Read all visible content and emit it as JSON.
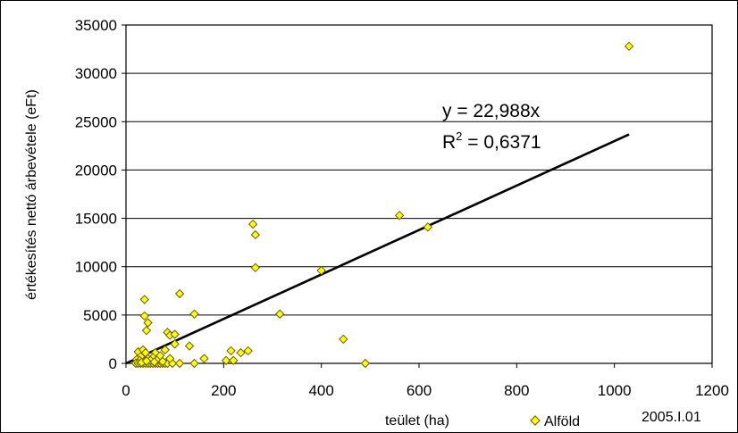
{
  "chart_data": {
    "type": "scatter",
    "xlabel": "teület (ha)",
    "ylabel": "értékesítés nettó árbevétele (eFt)",
    "xlim": [
      0,
      1200
    ],
    "ylim": [
      0,
      35000
    ],
    "x_ticks": [
      "0",
      "200",
      "400",
      "600",
      "800",
      "1000",
      "1200"
    ],
    "y_ticks": [
      "0",
      "5000",
      "10000",
      "15000",
      "20000",
      "25000",
      "30000",
      "35000"
    ],
    "grid": "horizontal",
    "legend_position": "bottom",
    "series": [
      {
        "name": "Alföld",
        "marker": "diamond",
        "color": "#ffff00",
        "points": [
          [
            1030,
            32800
          ],
          [
            560,
            15300
          ],
          [
            618,
            14100
          ],
          [
            260,
            14400
          ],
          [
            265,
            13300
          ],
          [
            265,
            9900
          ],
          [
            400,
            9600
          ],
          [
            315,
            5100
          ],
          [
            445,
            2500
          ],
          [
            490,
            0
          ],
          [
            110,
            7200
          ],
          [
            140,
            5100
          ],
          [
            38,
            6600
          ],
          [
            38,
            4900
          ],
          [
            45,
            4200
          ],
          [
            42,
            3400
          ],
          [
            85,
            3200
          ],
          [
            90,
            2900
          ],
          [
            100,
            3000
          ],
          [
            130,
            1800
          ],
          [
            100,
            2000
          ],
          [
            80,
            1400
          ],
          [
            60,
            1100
          ],
          [
            55,
            600
          ],
          [
            160,
            500
          ],
          [
            205,
            300
          ],
          [
            215,
            1300
          ],
          [
            220,
            300
          ],
          [
            235,
            1100
          ],
          [
            250,
            1300
          ],
          [
            25,
            1200
          ],
          [
            35,
            1400
          ],
          [
            40,
            1100
          ],
          [
            30,
            700
          ],
          [
            22,
            400
          ],
          [
            28,
            300
          ],
          [
            20,
            0
          ],
          [
            25,
            0
          ],
          [
            30,
            0
          ],
          [
            35,
            0
          ],
          [
            40,
            0
          ],
          [
            45,
            0
          ],
          [
            50,
            0
          ],
          [
            55,
            0
          ],
          [
            60,
            0
          ],
          [
            65,
            0
          ],
          [
            70,
            0
          ],
          [
            75,
            0
          ],
          [
            80,
            0
          ],
          [
            85,
            0
          ],
          [
            95,
            0
          ],
          [
            110,
            0
          ],
          [
            140,
            0
          ],
          [
            45,
            500
          ],
          [
            50,
            300
          ],
          [
            65,
            400
          ],
          [
            70,
            800
          ],
          [
            75,
            200
          ],
          [
            90,
            500
          ],
          [
            32,
            100
          ],
          [
            42,
            250
          ],
          [
            58,
            150
          ]
        ]
      }
    ],
    "trendline": {
      "type": "linear",
      "slope": 22.988,
      "x_range": [
        0,
        1030
      ],
      "equation_label": "y = 22,988x",
      "r2_prefix": "R",
      "r2_superscript": "2",
      "r2_value": " = 0,6371"
    },
    "annotation": "2005.I.01"
  }
}
